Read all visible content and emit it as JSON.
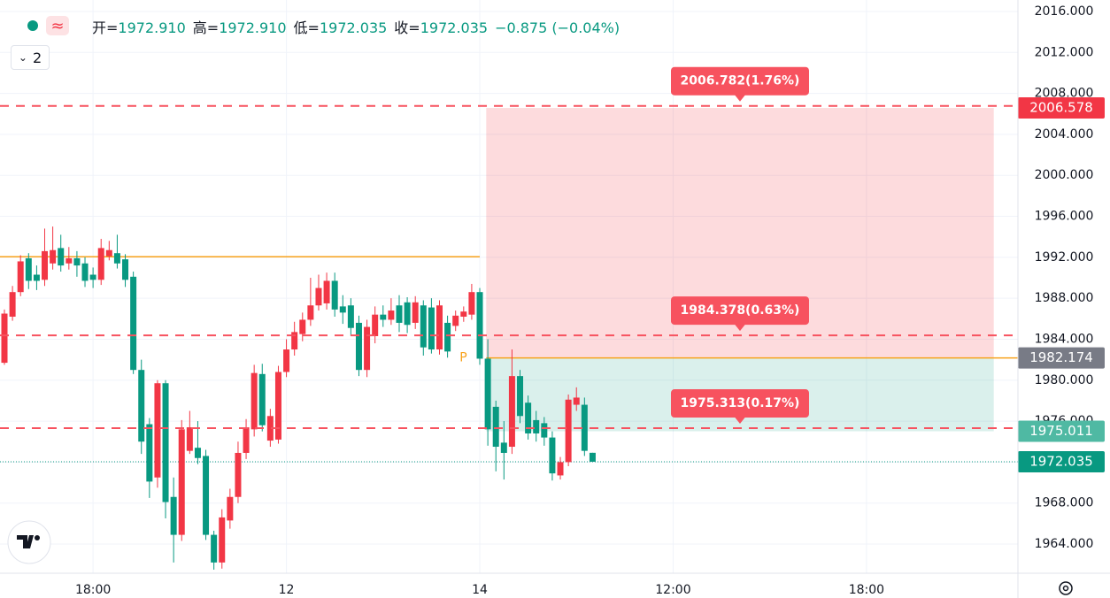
{
  "header": {
    "items": [
      {
        "label": "开=",
        "value": "1972.910"
      },
      {
        "label": "高=",
        "value": "1972.910"
      },
      {
        "label": "低=",
        "value": "1972.035"
      },
      {
        "label": "收=",
        "value": "1972.035"
      }
    ],
    "change": "−0.875 (−0.04%)",
    "indicators": "2"
  },
  "chart_data": {
    "type": "candlestick",
    "up_color": "#f23645",
    "down_color": "#089981",
    "open": [
      1981.7,
      1986.2,
      1988.6,
      1991.9,
      1990.3,
      1989.8,
      1991.4,
      1992.9,
      1991.4,
      1991.9,
      1991.4,
      1990.3,
      1989.8,
      1992.1,
      1992.4,
      1991.8,
      1990.1,
      1981.0,
      1975.7,
      1970.5,
      1979.7,
      1968.6,
      1964.9,
      1973.1,
      1973.4,
      1972.6,
      1964.9,
      1962.2,
      1966.3,
      1968.6,
      1972.9,
      1975.2,
      1980.6,
      1974.1,
      1974.2,
      1980.8,
      1983.0,
      1984.5,
      1985.9,
      1987.3,
      1987.5,
      1989.7,
      1987.2,
      1987.3,
      1985.6,
      1981.0,
      1984.3,
      1986.4,
      1985.9,
      1987.3,
      1987.6,
      1985.6,
      1987.3,
      1987.1,
      1983.0,
      1985.6,
      1985.3,
      1986.2,
      1986.4,
      1988.6,
      1982.1,
      1977.4,
      1973.9,
      1973.5,
      1980.4,
      1977.8,
      1976.1,
      1975.8,
      1974.4,
      1970.7,
      1972.0,
      1977.6,
      1977.6,
      1972.91
    ],
    "high": [
      1986.9,
      1989.2,
      1992.2,
      1992.4,
      1991.2,
      1994.8,
      1995.0,
      1994.2,
      1993.0,
      1992.6,
      1992.0,
      1991.0,
      1993.8,
      1993.6,
      1994.2,
      1992.3,
      1990.6,
      1982.0,
      1976.3,
      1980.0,
      1980.0,
      1970.5,
      1976.1,
      1977.0,
      1976.0,
      1973.2,
      1965.3,
      1967.4,
      1969.4,
      1974.0,
      1976.2,
      1981.5,
      1981.6,
      1977.2,
      1981.4,
      1984.0,
      1985.7,
      1986.6,
      1990.0,
      1990.3,
      1990.5,
      1990.5,
      1988.3,
      1988.0,
      1986.3,
      1985.9,
      1987.2,
      1987.3,
      1988.0,
      1988.3,
      1988.1,
      1988.2,
      1987.8,
      1988.0,
      1987.8,
      1986.3,
      1986.8,
      1987.2,
      1989.4,
      1989.0,
      1984.0,
      1978.0,
      1976.0,
      1983.0,
      1981.0,
      1978.5,
      1977.0,
      1976.4,
      1975.0,
      1972.5,
      1978.6,
      1979.3,
      1978.3,
      1972.91
    ],
    "low": [
      1981.5,
      1985.8,
      1988.2,
      1988.9,
      1988.8,
      1989.2,
      1990.8,
      1990.6,
      1990.8,
      1990.1,
      1989.1,
      1989.0,
      1989.3,
      1991.7,
      1990.9,
      1989.1,
      1980.6,
      1972.8,
      1968.5,
      1969.5,
      1966.5,
      1962.2,
      1964.3,
      1972.8,
      1971.8,
      1964.4,
      1961.5,
      1961.6,
      1965.5,
      1968.0,
      1972.3,
      1974.5,
      1975.0,
      1973.5,
      1973.8,
      1980.3,
      1982.4,
      1983.8,
      1985.3,
      1986.8,
      1986.9,
      1986.2,
      1985.5,
      1984.3,
      1980.4,
      1980.3,
      1983.6,
      1985.2,
      1985.4,
      1984.7,
      1984.6,
      1985.0,
      1982.4,
      1982.6,
      1982.5,
      1982.2,
      1984.8,
      1985.7,
      1985.9,
      1981.5,
      1973.6,
      1971.1,
      1970.3,
      1972.8,
      1975.8,
      1974.2,
      1974.0,
      1973.6,
      1970.2,
      1970.3,
      1971.6,
      1977.0,
      1972.6,
      1972.035
    ],
    "close": [
      1986.5,
      1988.6,
      1991.6,
      1989.7,
      1989.7,
      1992.6,
      1992.7,
      1991.2,
      1991.9,
      1991.2,
      1989.7,
      1989.8,
      1992.9,
      1992.7,
      1991.4,
      1989.8,
      1981.0,
      1974.0,
      1970.1,
      1979.7,
      1968.1,
      1964.9,
      1975.2,
      1975.4,
      1972.4,
      1964.9,
      1962.2,
      1966.6,
      1968.6,
      1972.9,
      1975.4,
      1980.7,
      1975.6,
      1976.5,
      1980.8,
      1983.0,
      1984.7,
      1985.9,
      1987.3,
      1989.0,
      1989.7,
      1986.9,
      1986.6,
      1985.1,
      1981.0,
      1985.2,
      1986.4,
      1985.9,
      1986.8,
      1985.6,
      1985.4,
      1987.6,
      1983.2,
      1983.0,
      1987.3,
      1982.8,
      1986.3,
      1986.7,
      1988.6,
      1982.1,
      1975.2,
      1973.5,
      1972.9,
      1980.4,
      1976.5,
      1974.8,
      1974.8,
      1974.4,
      1970.9,
      1972.0,
      1978.1,
      1978.3,
      1973.1,
      1972.035
    ],
    "xlim": [
      -0.55,
      125.8
    ],
    "xticks": [
      {
        "value": 11,
        "label": "18:00"
      },
      {
        "value": 35,
        "label": "12"
      },
      {
        "value": 59,
        "label": "14"
      },
      {
        "value": 83,
        "label": "12:00"
      },
      {
        "value": 107,
        "label": "18:00"
      }
    ],
    "ylim": [
      1961.15,
      2017.12
    ],
    "yticks": [
      {
        "value": 1964,
        "label": "1964.000"
      },
      {
        "value": 1968,
        "label": "1968.000"
      },
      {
        "value": 1972,
        "label": "1972.000"
      },
      {
        "value": 1976,
        "label": "1976.000"
      },
      {
        "value": 1980,
        "label": "1980.000"
      },
      {
        "value": 1984,
        "label": "1984.000"
      },
      {
        "value": 1988,
        "label": "1988.000"
      },
      {
        "value": 1992,
        "label": "1992.000"
      },
      {
        "value": 1996,
        "label": "1996.000"
      },
      {
        "value": 2000,
        "label": "2000.000"
      },
      {
        "value": 2004,
        "label": "2004.000"
      },
      {
        "value": 2008,
        "label": "2008.000"
      },
      {
        "value": 2012,
        "label": "2012.000"
      },
      {
        "value": 2016,
        "label": "2016.000"
      }
    ],
    "grid": true,
    "hline": {
      "value": 1992.05,
      "color": "#f7a21b",
      "end": 59
    },
    "targets": [
      {
        "value": 2006.782,
        "label": "2006.782(1.76%)"
      },
      {
        "value": 1984.378,
        "label": "1984.378(0.63%)"
      },
      {
        "value": 1975.313,
        "label": "1975.313(0.17%)"
      }
    ],
    "position": {
      "entry_price": 1982.174,
      "stop_price": 2006.578,
      "target_price": 1975.011,
      "x_range": [
        59.8,
        122.8
      ],
      "label": "P"
    },
    "last_price": 1972.035,
    "price_labels": [
      {
        "value": 2006.578,
        "color": "#f23645"
      },
      {
        "value": 1982.174,
        "color": "#787b86"
      },
      {
        "value": 1975.011,
        "color": "#4fb9a3"
      },
      {
        "value": 1972.035,
        "color": "#089981"
      }
    ]
  }
}
